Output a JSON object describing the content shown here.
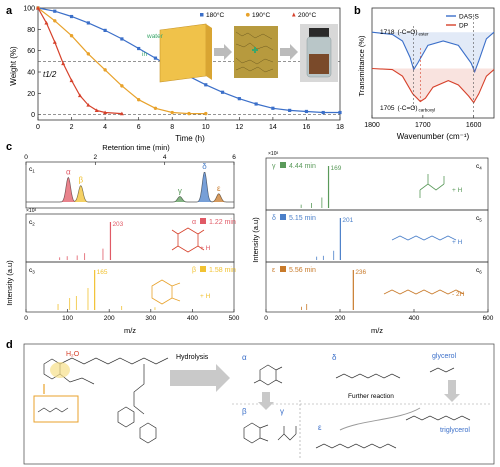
{
  "panels": {
    "a": "a",
    "b": "b",
    "c": "c",
    "d": "d"
  },
  "chart_data": [
    {
      "id": "a",
      "type": "line",
      "xlabel": "Time (h)",
      "ylabel": "Weight (%)",
      "xlim": [
        0,
        18
      ],
      "ylim": [
        -5,
        100
      ],
      "xticks": [
        "0",
        "2",
        "4",
        "6",
        "8",
        "10",
        "12",
        "14",
        "16",
        "18"
      ],
      "yticks": [
        "0",
        "20",
        "40",
        "60",
        "80",
        "100"
      ],
      "legend_placement": "top-right",
      "annotations": [
        "t1/2",
        "water",
        "in"
      ],
      "series": [
        {
          "name": "180°C",
          "color": "#3b6fc9",
          "marker": "square",
          "x": [
            0,
            1,
            2,
            3,
            4,
            5,
            6,
            7,
            8,
            9,
            10,
            11,
            12,
            13,
            14,
            15,
            16,
            17,
            18
          ],
          "values": [
            100,
            97,
            92,
            86,
            79,
            71,
            62,
            53,
            44,
            36,
            28,
            21,
            15,
            10,
            6,
            4,
            3,
            2,
            2
          ]
        },
        {
          "name": "190°C",
          "color": "#e8a22b",
          "marker": "circle",
          "x": [
            0,
            1,
            2,
            3,
            4,
            5,
            6,
            7,
            8,
            9,
            10
          ],
          "values": [
            100,
            88,
            74,
            57,
            42,
            27,
            14,
            6,
            2,
            1,
            1
          ]
        },
        {
          "name": "200°C",
          "color": "#d6412b",
          "marker": "triangle",
          "x": [
            0,
            0.5,
            1,
            1.5,
            2,
            2.5,
            3,
            3.5,
            4,
            5
          ],
          "values": [
            100,
            86,
            68,
            48,
            32,
            18,
            9,
            4,
            2,
            1
          ]
        }
      ]
    },
    {
      "id": "b",
      "type": "line",
      "xlabel": "Wavenumber (cm⁻¹)",
      "ylabel": "Transmittance (%)",
      "xlim": [
        1800,
        1560
      ],
      "xticks": [
        "1800",
        "1700",
        "1600"
      ],
      "legend_placement": "top-right",
      "annotations": [
        "1718",
        "(-C=O)",
        "ester",
        "1705",
        "(-C=O)",
        "carboxyl"
      ],
      "series": [
        {
          "name": "DAS-S",
          "color": "#3b6fc9",
          "x": [
            1800,
            1760,
            1740,
            1725,
            1718,
            1710,
            1690,
            1660,
            1630,
            1605,
            1598,
            1590,
            1575,
            1560
          ],
          "values": [
            0.78,
            0.76,
            0.7,
            0.55,
            0.44,
            0.5,
            0.66,
            0.7,
            0.66,
            0.5,
            0.42,
            0.52,
            0.72,
            0.78
          ]
        },
        {
          "name": "DP",
          "color": "#d6412b",
          "x": [
            1800,
            1760,
            1740,
            1720,
            1705,
            1695,
            1680,
            1650,
            1630,
            1610,
            1600,
            1590,
            1575,
            1560
          ],
          "values": [
            0.45,
            0.44,
            0.38,
            0.22,
            0.15,
            0.18,
            0.28,
            0.34,
            0.3,
            0.2,
            0.14,
            0.22,
            0.38,
            0.44
          ]
        }
      ]
    },
    {
      "id": "c1",
      "type": "line",
      "xlabel": "Retention time (min)",
      "xlim": [
        0,
        6
      ],
      "xticks": [
        "0",
        "2",
        "4",
        "6"
      ],
      "peak_labels": [
        "α",
        "β",
        "γ",
        "δ",
        "ε"
      ],
      "peaks": [
        {
          "label": "α",
          "x": 1.22,
          "height": 0.72,
          "color": "#e05a66"
        },
        {
          "label": "β",
          "x": 1.58,
          "height": 0.48,
          "color": "#f1c232"
        },
        {
          "label": "γ",
          "x": 4.44,
          "height": 0.16,
          "color": "#5a9a5a"
        },
        {
          "label": "δ",
          "x": 5.15,
          "height": 0.88,
          "color": "#4a7fc9"
        },
        {
          "label": "ε",
          "x": 5.56,
          "height": 0.24,
          "color": "#c87a2a"
        }
      ]
    },
    {
      "id": "c2-c3",
      "type": "bar",
      "xlabel": "m/z",
      "ylabel": "Intensity (a.u)",
      "xlim": [
        0,
        500
      ],
      "xticks": [
        "0",
        "100",
        "200",
        "300",
        "400",
        "500"
      ],
      "exponent": "×10³",
      "spectra": [
        {
          "label": "c2",
          "species": "α",
          "time": "1.22 min",
          "base_peak": "203",
          "adduct": "+ H",
          "color": "#e05a66",
          "mz": [
            203,
            185,
            141,
            123,
            99,
            81
          ],
          "values": [
            1,
            0.3,
            0.18,
            0.12,
            0.1,
            0.07
          ]
        },
        {
          "label": "c3",
          "species": "β",
          "time": "1.58 min",
          "base_peak": "165",
          "adduct": "+ H",
          "color": "#f1c232",
          "mz": [
            165,
            149,
            121,
            105,
            77,
            230,
            310
          ],
          "values": [
            1,
            0.55,
            0.35,
            0.3,
            0.15,
            0.1,
            0.07
          ]
        }
      ]
    },
    {
      "id": "c4-c6",
      "type": "bar",
      "xlabel": "m/z",
      "ylabel": "Intensity (a.u)",
      "xlim": [
        0,
        600
      ],
      "xticks": [
        "0",
        "200",
        "400",
        "600"
      ],
      "exponent": "×10³",
      "spectra": [
        {
          "label": "c4",
          "species": "γ",
          "time": "4.44 min",
          "base_peak": "169",
          "adduct": "+ H",
          "color": "#5a9a5a",
          "mz": [
            169,
            151,
            123,
            95
          ],
          "values": [
            1,
            0.25,
            0.12,
            0.08
          ]
        },
        {
          "label": "c5",
          "species": "δ",
          "time": "5.15 min",
          "base_peak": "201",
          "adduct": "+ H",
          "color": "#4a7fc9",
          "mz": [
            201,
            183,
            155,
            137
          ],
          "values": [
            1,
            0.22,
            0.1,
            0.08
          ]
        },
        {
          "label": "c6",
          "species": "ε",
          "time": "5.56 min",
          "base_peak": "236",
          "adduct": "- 2H",
          "color": "#c87a2a",
          "mz": [
            236,
            110,
            96
          ],
          "values": [
            1,
            0.15,
            0.08
          ]
        }
      ]
    }
  ],
  "scheme": {
    "reagent": "H₂O",
    "arrow1": "Hydrolysis",
    "arrow2": "Further reaction",
    "labels": [
      "α",
      "δ",
      "β",
      "γ",
      "ε"
    ],
    "glycerol": "glycerol",
    "triglycerol": "triglycerol",
    "accent_red": "#d6412b",
    "accent_blue": "#3b6fc9",
    "accent_orange": "#e8a22b"
  }
}
